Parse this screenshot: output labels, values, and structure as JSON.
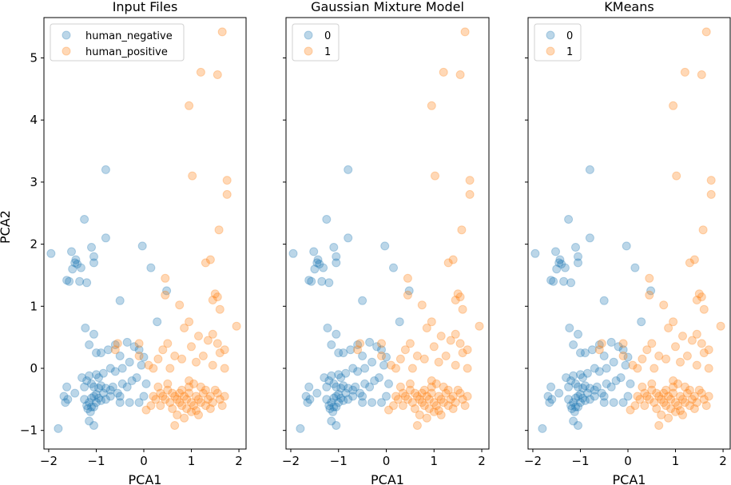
{
  "chart_data": {
    "type": "scatter",
    "ylabel": "PCA2",
    "xlim": [
      -2.1,
      2.15
    ],
    "ylim": [
      -1.3,
      5.65
    ],
    "xticks": [
      -2,
      -1,
      0,
      1,
      2
    ],
    "yticks": [
      -1,
      0,
      1,
      2,
      3,
      4,
      5
    ],
    "xtick_labels": [
      "−2",
      "−1",
      "0",
      "1",
      "2"
    ],
    "ytick_labels": [
      "−1",
      "0",
      "1",
      "2",
      "3",
      "4",
      "5"
    ],
    "colors": {
      "blue": "#1f77b4",
      "orange": "#ff7f0e"
    },
    "point_alpha": 0.3,
    "series_points": {
      "blue": [
        [
          -1.95,
          1.85
        ],
        [
          -1.8,
          -0.97
        ],
        [
          -1.62,
          1.42
        ],
        [
          -1.57,
          1.4
        ],
        [
          -1.52,
          1.88
        ],
        [
          -1.5,
          1.6
        ],
        [
          -1.45,
          1.7
        ],
        [
          -1.43,
          1.75
        ],
        [
          -1.4,
          1.68
        ],
        [
          -1.35,
          1.4
        ],
        [
          -1.32,
          1.62
        ],
        [
          -1.25,
          2.4
        ],
        [
          -1.23,
          0.65
        ],
        [
          -1.2,
          1.38
        ],
        [
          -1.1,
          1.95
        ],
        [
          -1.05,
          1.7
        ],
        [
          -1.05,
          1.8
        ],
        [
          -0.8,
          3.2
        ],
        [
          -0.8,
          2.1
        ],
        [
          -0.03,
          1.97
        ],
        [
          0.28,
          0.75
        ],
        [
          0.15,
          1.62
        ],
        [
          0.48,
          1.25
        ],
        [
          -0.5,
          1.09
        ],
        [
          -1.05,
          0.55
        ],
        [
          -1.15,
          0.38
        ],
        [
          -1.0,
          0.25
        ],
        [
          -0.9,
          0.25
        ],
        [
          -0.75,
          0.3
        ],
        [
          -0.6,
          0.38
        ],
        [
          -0.5,
          0.2
        ],
        [
          -0.35,
          0.42
        ],
        [
          -0.2,
          0.35
        ],
        [
          -0.1,
          0.3
        ],
        [
          0.0,
          0.18
        ],
        [
          -0.05,
          0.05
        ],
        [
          -0.3,
          0.1
        ],
        [
          -0.45,
          0.0
        ],
        [
          -0.6,
          -0.05
        ],
        [
          -0.7,
          0.0
        ],
        [
          -0.85,
          -0.08
        ],
        [
          -1.0,
          -0.1
        ],
        [
          -1.15,
          -0.12
        ],
        [
          -1.3,
          -0.15
        ],
        [
          -1.2,
          -0.2
        ],
        [
          -0.95,
          -0.15
        ],
        [
          -1.1,
          -0.25
        ],
        [
          -1.05,
          -0.3
        ],
        [
          -0.9,
          -0.28
        ],
        [
          -0.8,
          -0.32
        ],
        [
          -0.7,
          -0.35
        ],
        [
          -0.65,
          -0.3
        ],
        [
          -0.55,
          -0.4
        ],
        [
          -0.45,
          -0.25
        ],
        [
          -0.35,
          -0.3
        ],
        [
          -0.25,
          -0.2
        ],
        [
          -0.15,
          -0.15
        ],
        [
          0.05,
          -0.25
        ],
        [
          0.0,
          -0.45
        ],
        [
          -0.1,
          -0.55
        ],
        [
          -0.3,
          -0.55
        ],
        [
          -0.5,
          -0.45
        ],
        [
          -0.7,
          -0.45
        ],
        [
          -0.8,
          -0.5
        ],
        [
          -0.9,
          -0.52
        ],
        [
          -1.0,
          -0.42
        ],
        [
          -1.05,
          -0.45
        ],
        [
          -1.1,
          -0.48
        ],
        [
          -1.15,
          -0.55
        ],
        [
          -1.1,
          -0.62
        ],
        [
          -1.0,
          -0.55
        ],
        [
          -0.95,
          -0.48
        ],
        [
          -0.85,
          -0.4
        ],
        [
          -1.18,
          -0.65
        ],
        [
          -1.12,
          -0.7
        ],
        [
          -1.05,
          -0.62
        ],
        [
          -1.2,
          -0.6
        ],
        [
          -1.25,
          -0.5
        ],
        [
          -1.15,
          -0.85
        ],
        [
          -1.05,
          -0.92
        ],
        [
          -1.62,
          -0.3
        ],
        [
          -1.6,
          -0.5
        ],
        [
          -1.65,
          -0.55
        ],
        [
          -1.45,
          -0.4
        ],
        [
          -1.68,
          -0.45
        ],
        [
          -1.25,
          -0.3
        ],
        [
          -0.95,
          -0.32
        ],
        [
          -0.5,
          -0.55
        ]
      ],
      "orange": [
        [
          1.65,
          5.42
        ],
        [
          1.2,
          4.77
        ],
        [
          1.55,
          4.73
        ],
        [
          0.95,
          4.23
        ],
        [
          1.02,
          3.1
        ],
        [
          1.75,
          3.03
        ],
        [
          1.75,
          2.8
        ],
        [
          1.58,
          2.23
        ],
        [
          1.4,
          1.75
        ],
        [
          1.3,
          1.7
        ],
        [
          1.5,
          1.2
        ],
        [
          1.45,
          1.1
        ],
        [
          1.55,
          1.15
        ],
        [
          1.6,
          0.95
        ],
        [
          1.95,
          0.68
        ],
        [
          0.45,
          1.45
        ],
        [
          0.45,
          1.18
        ],
        [
          0.75,
          1.02
        ],
        [
          0.85,
          0.65
        ],
        [
          0.95,
          0.75
        ],
        [
          1.15,
          0.52
        ],
        [
          1.35,
          0.45
        ],
        [
          1.55,
          0.4
        ],
        [
          1.7,
          0.3
        ],
        [
          1.45,
          0.55
        ],
        [
          0.5,
          0.4
        ],
        [
          0.4,
          0.3
        ],
        [
          0.65,
          0.2
        ],
        [
          0.8,
          0.15
        ],
        [
          1.0,
          0.35
        ],
        [
          1.1,
          0.1
        ],
        [
          1.25,
          0.2
        ],
        [
          1.45,
          0.05
        ],
        [
          1.6,
          0.25
        ],
        [
          1.7,
          0.0
        ],
        [
          -0.6,
          0.3
        ],
        [
          -0.55,
          0.4
        ],
        [
          -0.1,
          0.4
        ],
        [
          -0.1,
          0.2
        ],
        [
          0.3,
          0.15
        ],
        [
          0.1,
          0.05
        ],
        [
          0.2,
          0.0
        ],
        [
          0.55,
          0.0
        ],
        [
          0.3,
          -0.3
        ],
        [
          0.5,
          -0.35
        ],
        [
          0.6,
          -0.4
        ],
        [
          0.65,
          -0.45
        ],
        [
          0.7,
          -0.5
        ],
        [
          0.75,
          -0.55
        ],
        [
          0.8,
          -0.6
        ],
        [
          0.85,
          -0.45
        ],
        [
          0.9,
          -0.5
        ],
        [
          0.95,
          -0.4
        ],
        [
          1.0,
          -0.55
        ],
        [
          1.05,
          -0.6
        ],
        [
          1.1,
          -0.45
        ],
        [
          1.15,
          -0.5
        ],
        [
          1.2,
          -0.55
        ],
        [
          1.25,
          -0.4
        ],
        [
          1.3,
          -0.6
        ],
        [
          1.35,
          -0.5
        ],
        [
          1.4,
          -0.45
        ],
        [
          1.45,
          -0.55
        ],
        [
          1.5,
          -0.35
        ],
        [
          1.55,
          -0.4
        ],
        [
          1.6,
          -0.5
        ],
        [
          0.9,
          -0.65
        ],
        [
          1.0,
          -0.7
        ],
        [
          1.1,
          -0.68
        ],
        [
          0.7,
          -0.75
        ],
        [
          0.6,
          -0.65
        ],
        [
          0.55,
          -0.55
        ],
        [
          0.45,
          -0.5
        ],
        [
          0.4,
          -0.45
        ],
        [
          0.35,
          -0.4
        ],
        [
          0.25,
          -0.5
        ],
        [
          0.15,
          -0.6
        ],
        [
          0.05,
          -0.67
        ],
        [
          0.2,
          -0.45
        ],
        [
          0.35,
          -0.6
        ],
        [
          0.8,
          -0.35
        ],
        [
          0.95,
          -0.3
        ],
        [
          1.05,
          -0.25
        ],
        [
          1.2,
          -0.3
        ],
        [
          1.3,
          -0.35
        ],
        [
          0.75,
          -0.4
        ],
        [
          1.4,
          -0.65
        ],
        [
          1.15,
          -0.75
        ],
        [
          0.85,
          -0.8
        ],
        [
          0.65,
          -0.92
        ],
        [
          1.7,
          -0.45
        ],
        [
          1.65,
          -0.6
        ],
        [
          0.95,
          -0.2
        ],
        [
          0.5,
          -0.25
        ]
      ]
    },
    "panels": [
      {
        "title": "Input Files",
        "xlabel": "PCA1",
        "legend": [
          {
            "label": "human_negative",
            "color": "blue"
          },
          {
            "label": "human_positive",
            "color": "orange"
          }
        ],
        "series": [
          {
            "name": "human_negative",
            "color": "blue"
          },
          {
            "name": "human_positive",
            "color": "orange"
          }
        ]
      },
      {
        "title": "Gaussian Mixture Model",
        "xlabel": "PCA1",
        "legend": [
          {
            "label": "0",
            "color": "blue"
          },
          {
            "label": "1",
            "color": "orange"
          }
        ],
        "series": [
          {
            "name": "0",
            "color": "blue"
          },
          {
            "name": "1",
            "color": "orange"
          }
        ]
      },
      {
        "title": "KMeans",
        "xlabel": "PCA1",
        "legend": [
          {
            "label": "0",
            "color": "blue"
          },
          {
            "label": "1",
            "color": "orange"
          }
        ],
        "series": [
          {
            "name": "0",
            "color": "blue"
          },
          {
            "name": "1",
            "color": "orange"
          }
        ]
      }
    ]
  }
}
